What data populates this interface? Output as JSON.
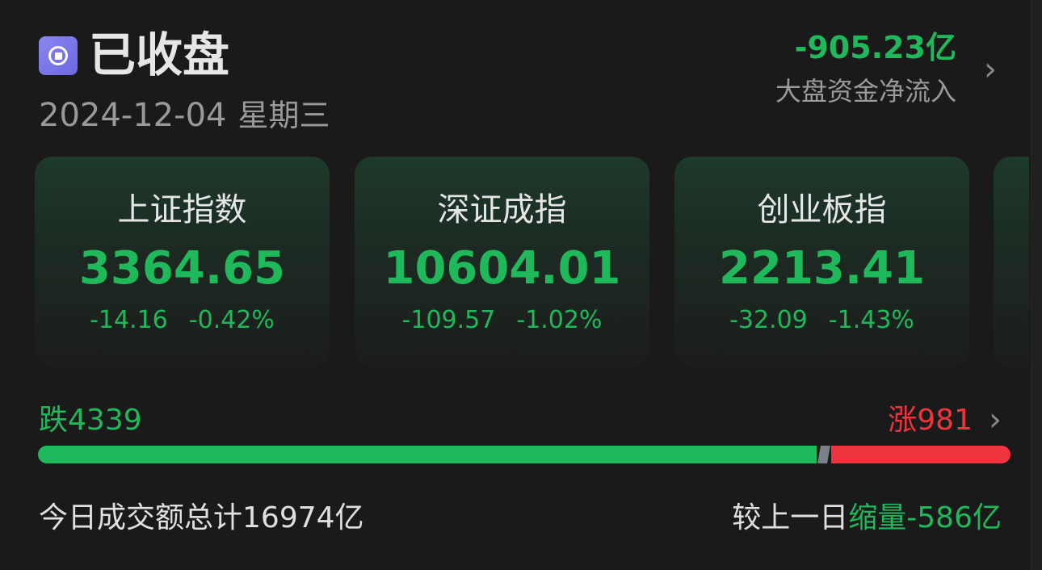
{
  "header": {
    "status_icon": "market-closed-icon",
    "title": "已收盘",
    "date": "2024-12-04",
    "weekday": "星期三",
    "net_inflow_value": "-905.23亿",
    "net_inflow_label": "大盘资金净流入"
  },
  "indices": [
    {
      "name": "上证指数",
      "value": "3364.65",
      "change": "-14.16",
      "change_pct": "-0.42%"
    },
    {
      "name": "深证成指",
      "value": "10604.01",
      "change": "-109.57",
      "change_pct": "-1.02%"
    },
    {
      "name": "创业板指",
      "value": "2213.41",
      "change": "-32.09",
      "change_pct": "-1.43%"
    }
  ],
  "breadth": {
    "down_label": "跌",
    "down_count": "4339",
    "up_label": "涨",
    "up_count": "981",
    "down_fraction": 0.8156
  },
  "volume": {
    "total_label": "今日成交额总计",
    "total_value": "16974",
    "unit": "亿",
    "compare_label": "较上一日",
    "compare_type": "缩量",
    "compare_value": "-586",
    "compare_unit": "亿"
  },
  "colors": {
    "down": "#1fb85a",
    "up": "#f0343f",
    "accent": "#7a76ea"
  }
}
